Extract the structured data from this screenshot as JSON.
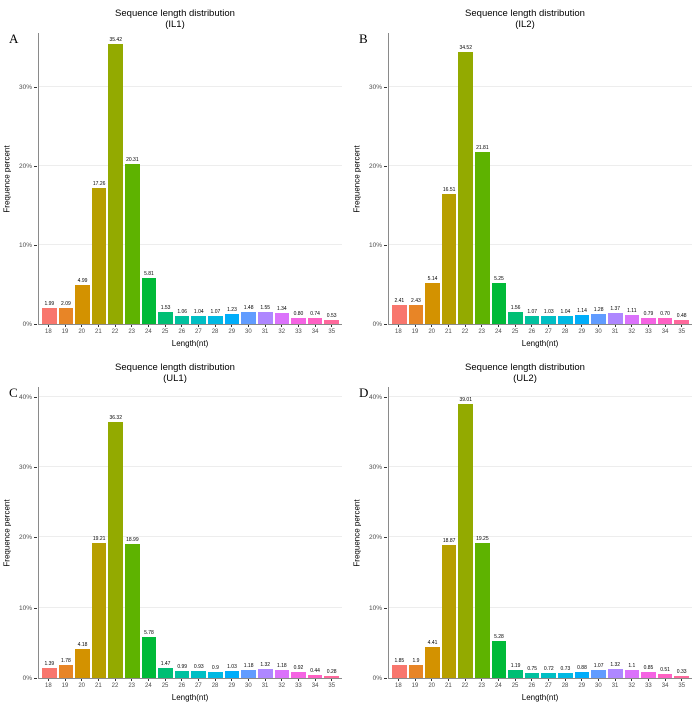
{
  "figure": {
    "background": "#ffffff"
  },
  "bar_colors": [
    "#F8766D",
    "#E88526",
    "#D39200",
    "#B79F00",
    "#93AA00",
    "#5EB300",
    "#00BA38",
    "#00BF74",
    "#00C19F",
    "#00BFC4",
    "#00B9E3",
    "#00ADFA",
    "#619CFF",
    "#AE87FF",
    "#DB72FB",
    "#F564E3",
    "#FF61C3",
    "#FF699C"
  ],
  "chart_data": [
    {
      "type": "bar",
      "panel": "A",
      "title": "Sequence length distribution",
      "subtitle": "(IL1)",
      "xlabel": "Length(nt)",
      "ylabel": "Frequence percent",
      "categories": [
        "18",
        "19",
        "20",
        "21",
        "22",
        "23",
        "24",
        "25",
        "26",
        "27",
        "28",
        "29",
        "30",
        "31",
        "32",
        "33",
        "34",
        "35"
      ],
      "values": [
        1.99,
        2.09,
        4.99,
        17.26,
        35.42,
        20.31,
        5.81,
        1.53,
        1.06,
        1.04,
        1.07,
        1.23,
        1.48,
        1.55,
        1.34,
        0.8,
        0.74,
        0.53
      ],
      "labels": [
        "1.99",
        "2.09",
        "4.99",
        "17.26",
        "35.42",
        "20.31",
        "5.81",
        "1.53",
        "1.06",
        "1.04",
        "1.07",
        "1.23",
        "1.48",
        "1.55",
        "1.34",
        "0.80",
        "0.74",
        "0.53"
      ],
      "ylim": [
        0,
        37
      ],
      "yticks": [
        0,
        10,
        20,
        30
      ],
      "grid": true,
      "legend": "none"
    },
    {
      "type": "bar",
      "panel": "B",
      "title": "Sequence length distribution",
      "subtitle": "(IL2)",
      "xlabel": "Length(nt)",
      "ylabel": "Frequence percent",
      "categories": [
        "18",
        "19",
        "20",
        "21",
        "22",
        "23",
        "24",
        "25",
        "26",
        "27",
        "28",
        "29",
        "30",
        "31",
        "32",
        "33",
        "34",
        "35"
      ],
      "values": [
        2.41,
        2.43,
        5.14,
        16.51,
        34.52,
        21.81,
        5.25,
        1.56,
        1.07,
        1.03,
        1.04,
        1.14,
        1.28,
        1.37,
        1.11,
        0.79,
        0.7,
        0.48
      ],
      "labels": [
        "2.41",
        "2.43",
        "5.14",
        "16.51",
        "34.52",
        "21.81",
        "5.25",
        "1.56",
        "1.07",
        "1.03",
        "1.04",
        "1.14",
        "1.28",
        "1.37",
        "1.11",
        "0.79",
        "0.70",
        "0.48"
      ],
      "ylim": [
        0,
        37
      ],
      "yticks": [
        0,
        10,
        20,
        30
      ],
      "grid": true,
      "legend": "none"
    },
    {
      "type": "bar",
      "panel": "C",
      "title": "Sequence length distribution",
      "subtitle": "(UL1)",
      "xlabel": "Length(nt)",
      "ylabel": "Frequence percent",
      "categories": [
        "18",
        "19",
        "20",
        "21",
        "22",
        "23",
        "24",
        "25",
        "26",
        "27",
        "28",
        "29",
        "30",
        "31",
        "32",
        "33",
        "34",
        "35"
      ],
      "values": [
        1.39,
        1.78,
        4.18,
        19.21,
        36.32,
        18.99,
        5.78,
        1.47,
        0.99,
        0.93,
        0.9,
        1.03,
        1.18,
        1.32,
        1.18,
        0.92,
        0.44,
        0.28
      ],
      "labels": [
        "1.39",
        "1.78",
        "4.18",
        "19.21",
        "36.32",
        "18.99",
        "5.78",
        "1.47",
        "0.99",
        "0.93",
        "0.9",
        "1.03",
        "1.18",
        "1.32",
        "1.18",
        "0.92",
        "0.44",
        "0.28"
      ],
      "ylim": [
        0,
        41.5
      ],
      "yticks": [
        0,
        10,
        20,
        30,
        40
      ],
      "grid": true,
      "legend": "none"
    },
    {
      "type": "bar",
      "panel": "D",
      "title": "Sequence length distribution",
      "subtitle": "(UL2)",
      "xlabel": "Length(nt)",
      "ylabel": "Frequence percent",
      "categories": [
        "18",
        "19",
        "20",
        "21",
        "22",
        "23",
        "24",
        "25",
        "26",
        "27",
        "28",
        "29",
        "30",
        "31",
        "32",
        "33",
        "34",
        "35"
      ],
      "values": [
        1.85,
        1.9,
        4.41,
        18.87,
        39.01,
        19.25,
        5.28,
        1.19,
        0.75,
        0.72,
        0.73,
        0.88,
        1.07,
        1.32,
        1.1,
        0.85,
        0.51,
        0.33
      ],
      "labels": [
        "1.85",
        "1.9",
        "4.41",
        "18.87",
        "39.01",
        "19.25",
        "5.28",
        "1.19",
        "0.75",
        "0.72",
        "0.73",
        "0.88",
        "1.07",
        "1.32",
        "1.1",
        "0.85",
        "0.51",
        "0.33"
      ],
      "ylim": [
        0,
        41.5
      ],
      "yticks": [
        0,
        10,
        20,
        30,
        40
      ],
      "grid": true,
      "legend": "none"
    }
  ]
}
